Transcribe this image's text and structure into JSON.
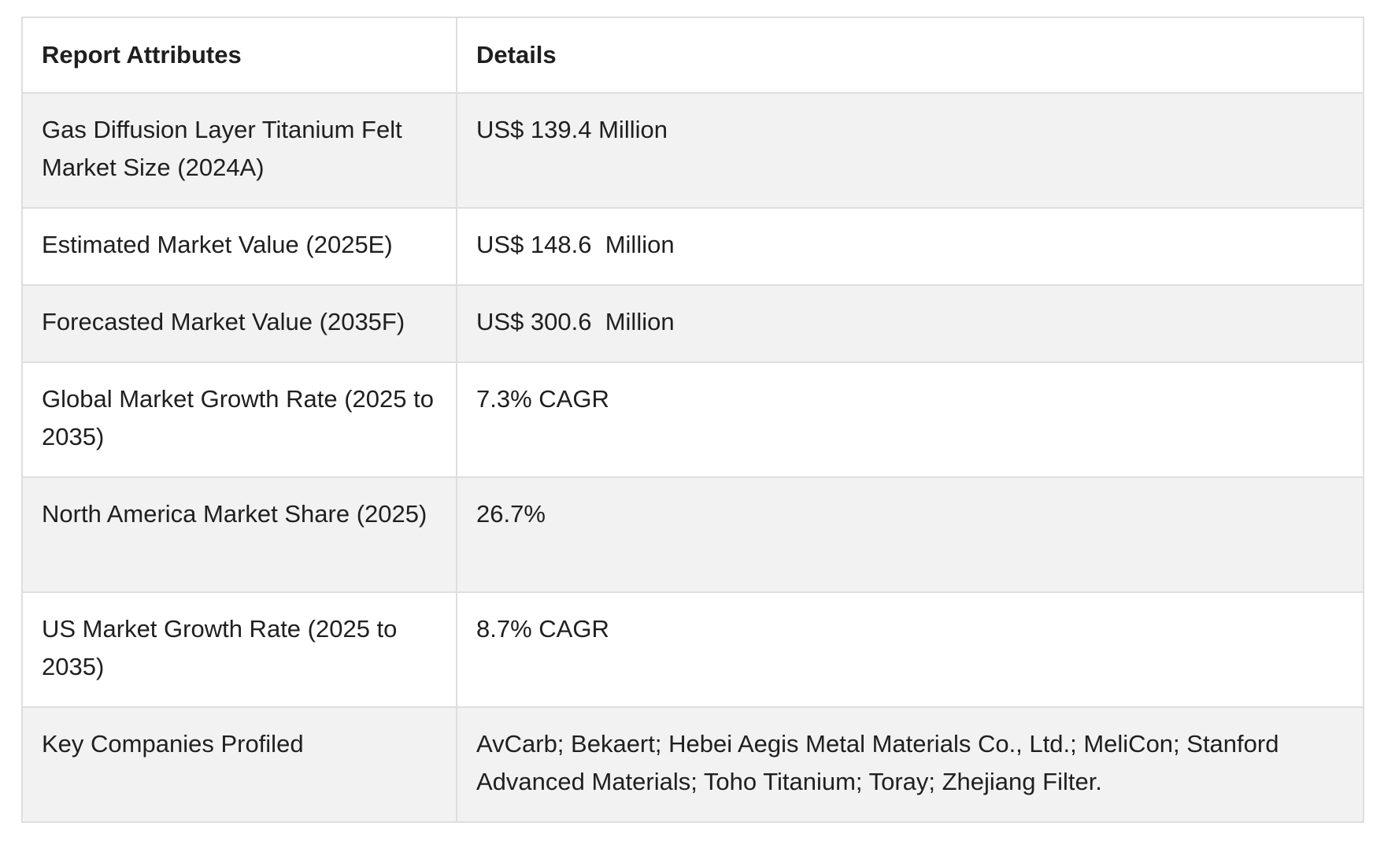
{
  "table": {
    "headers": [
      "Report Attributes",
      "Details"
    ],
    "rows": [
      {
        "attribute": "Gas Diffusion Layer Titanium Felt Market Size (2024A)",
        "details": "US$ 139.4 Million"
      },
      {
        "attribute": "Estimated Market Value (2025E)",
        "details": "US$ 148.6  Million"
      },
      {
        "attribute": "Forecasted Market Value (2035F)",
        "details": "US$ 300.6  Million"
      },
      {
        "attribute": "Global Market Growth Rate (2025 to 2035)",
        "details": "7.3% CAGR"
      },
      {
        "attribute": "North America Market Share (2025)",
        "details": "26.7%"
      },
      {
        "attribute": "US Market Growth Rate (2025 to 2035)",
        "details": "8.7% CAGR"
      },
      {
        "attribute": "Key Companies Profiled",
        "details": "AvCarb; Bekaert; Hebei Aegis Metal Materials Co., Ltd.; MeliCon; Stanford Advanced Materials; Toho Titanium; Toray; Zhejiang Filter."
      }
    ]
  }
}
